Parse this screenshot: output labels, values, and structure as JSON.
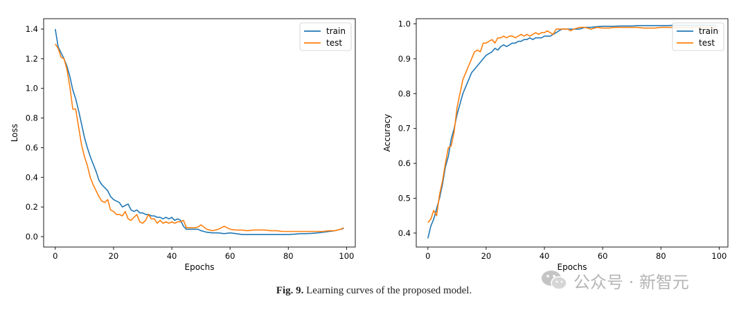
{
  "caption": {
    "label": "Fig. 9.",
    "text": "Learning curves of the proposed model."
  },
  "watermark": {
    "text": "公众号 · 新智元",
    "icon": "wechat-icon"
  },
  "colors": {
    "train": "#1f77b4",
    "test": "#ff7f0e",
    "axis": "#000000",
    "watermark": "#b5b5b5"
  },
  "chart_data": [
    {
      "type": "line",
      "title": "",
      "xlabel": "Epochs",
      "ylabel": "Loss",
      "xlim": [
        -4,
        103
      ],
      "ylim": [
        -0.07,
        1.47
      ],
      "xticks": [
        0,
        20,
        40,
        60,
        80,
        100
      ],
      "yticks": [
        0.0,
        0.2,
        0.4,
        0.6,
        0.8,
        1.0,
        1.2,
        1.4
      ],
      "ytick_labels": [
        "0.0",
        "0.2",
        "0.4",
        "0.6",
        "0.8",
        "1.0",
        "1.2",
        "1.4"
      ],
      "grid": false,
      "legend": "top-right",
      "series": [
        {
          "name": "train",
          "x": [
            0,
            1,
            2,
            3,
            4,
            5,
            6,
            7,
            8,
            9,
            10,
            11,
            12,
            13,
            14,
            15,
            16,
            17,
            18,
            19,
            20,
            21,
            22,
            23,
            24,
            25,
            26,
            27,
            28,
            29,
            30,
            31,
            32,
            33,
            34,
            35,
            36,
            37,
            38,
            39,
            40,
            41,
            42,
            43,
            44,
            45,
            46,
            47,
            48,
            49,
            50,
            52,
            54,
            56,
            58,
            60,
            62,
            64,
            66,
            68,
            70,
            72,
            74,
            76,
            78,
            80,
            82,
            84,
            86,
            88,
            90,
            92,
            94,
            96,
            98,
            99
          ],
          "y": [
            1.4,
            1.28,
            1.24,
            1.2,
            1.15,
            1.08,
            0.99,
            0.93,
            0.85,
            0.76,
            0.67,
            0.6,
            0.54,
            0.49,
            0.44,
            0.38,
            0.35,
            0.33,
            0.31,
            0.27,
            0.25,
            0.24,
            0.23,
            0.2,
            0.21,
            0.22,
            0.18,
            0.17,
            0.18,
            0.16,
            0.16,
            0.15,
            0.15,
            0.14,
            0.14,
            0.13,
            0.13,
            0.12,
            0.13,
            0.12,
            0.13,
            0.11,
            0.12,
            0.11,
            0.07,
            0.05,
            0.05,
            0.05,
            0.05,
            0.05,
            0.04,
            0.03,
            0.025,
            0.025,
            0.02,
            0.025,
            0.02,
            0.015,
            0.015,
            0.015,
            0.015,
            0.015,
            0.015,
            0.015,
            0.015,
            0.015,
            0.017,
            0.02,
            0.02,
            0.022,
            0.025,
            0.03,
            0.035,
            0.04,
            0.05,
            0.055
          ]
        },
        {
          "name": "test",
          "x": [
            0,
            1,
            2,
            3,
            4,
            5,
            6,
            7,
            8,
            9,
            10,
            11,
            12,
            13,
            14,
            15,
            16,
            17,
            18,
            19,
            20,
            21,
            22,
            23,
            24,
            25,
            26,
            27,
            28,
            29,
            30,
            31,
            32,
            33,
            34,
            35,
            36,
            37,
            38,
            39,
            40,
            41,
            42,
            43,
            44,
            45,
            46,
            47,
            48,
            49,
            50,
            52,
            54,
            56,
            58,
            60,
            62,
            64,
            66,
            68,
            70,
            72,
            74,
            76,
            78,
            80,
            82,
            84,
            86,
            88,
            90,
            92,
            94,
            96,
            98,
            99
          ],
          "y": [
            1.3,
            1.27,
            1.21,
            1.2,
            1.13,
            1.01,
            0.86,
            0.86,
            0.74,
            0.62,
            0.54,
            0.48,
            0.4,
            0.35,
            0.31,
            0.27,
            0.24,
            0.23,
            0.25,
            0.18,
            0.17,
            0.15,
            0.15,
            0.14,
            0.17,
            0.12,
            0.11,
            0.13,
            0.15,
            0.1,
            0.09,
            0.11,
            0.15,
            0.12,
            0.12,
            0.09,
            0.11,
            0.09,
            0.1,
            0.09,
            0.1,
            0.09,
            0.1,
            0.1,
            0.11,
            0.06,
            0.06,
            0.06,
            0.06,
            0.065,
            0.08,
            0.05,
            0.04,
            0.05,
            0.07,
            0.05,
            0.045,
            0.045,
            0.04,
            0.045,
            0.045,
            0.045,
            0.04,
            0.04,
            0.035,
            0.035,
            0.035,
            0.035,
            0.035,
            0.035,
            0.035,
            0.035,
            0.04,
            0.04,
            0.05,
            0.06
          ]
        }
      ]
    },
    {
      "type": "line",
      "title": "",
      "xlabel": "Epochs",
      "ylabel": "Accuracy",
      "xlim": [
        -4,
        103
      ],
      "ylim": [
        0.36,
        1.015
      ],
      "xticks": [
        0,
        20,
        40,
        60,
        80,
        100
      ],
      "yticks": [
        0.4,
        0.5,
        0.6,
        0.7,
        0.8,
        0.9,
        1.0
      ],
      "ytick_labels": [
        "0.4",
        "0.5",
        "0.6",
        "0.7",
        "0.8",
        "0.9",
        "1.0"
      ],
      "grid": false,
      "legend": "top-right",
      "series": [
        {
          "name": "train",
          "x": [
            0,
            1,
            2,
            3,
            4,
            5,
            6,
            7,
            8,
            9,
            10,
            11,
            12,
            13,
            14,
            15,
            16,
            17,
            18,
            19,
            20,
            21,
            22,
            23,
            24,
            25,
            26,
            27,
            28,
            29,
            30,
            31,
            32,
            33,
            34,
            35,
            36,
            37,
            38,
            39,
            40,
            41,
            42,
            43,
            44,
            45,
            46,
            47,
            48,
            49,
            50,
            52,
            54,
            56,
            58,
            60,
            62,
            64,
            66,
            68,
            70,
            72,
            74,
            76,
            78,
            80,
            82,
            84,
            86,
            88,
            90,
            92,
            94,
            96,
            98,
            99
          ],
          "y": [
            0.385,
            0.42,
            0.44,
            0.47,
            0.5,
            0.54,
            0.59,
            0.62,
            0.67,
            0.7,
            0.74,
            0.77,
            0.8,
            0.82,
            0.84,
            0.86,
            0.87,
            0.88,
            0.89,
            0.9,
            0.91,
            0.915,
            0.92,
            0.93,
            0.925,
            0.935,
            0.94,
            0.935,
            0.94,
            0.945,
            0.945,
            0.95,
            0.95,
            0.955,
            0.955,
            0.96,
            0.955,
            0.96,
            0.96,
            0.96,
            0.965,
            0.965,
            0.965,
            0.97,
            0.975,
            0.98,
            0.985,
            0.985,
            0.985,
            0.985,
            0.985,
            0.985,
            0.99,
            0.99,
            0.992,
            0.993,
            0.993,
            0.993,
            0.994,
            0.994,
            0.994,
            0.995,
            0.995,
            0.995,
            0.995,
            0.995,
            0.995,
            0.996,
            0.996,
            0.996,
            0.996,
            0.996,
            0.996,
            0.996,
            0.996,
            0.996
          ]
        },
        {
          "name": "test",
          "x": [
            0,
            1,
            2,
            3,
            4,
            5,
            6,
            7,
            8,
            9,
            10,
            11,
            12,
            13,
            14,
            15,
            16,
            17,
            18,
            19,
            20,
            21,
            22,
            23,
            24,
            25,
            26,
            27,
            28,
            29,
            30,
            31,
            32,
            33,
            34,
            35,
            36,
            37,
            38,
            39,
            40,
            41,
            42,
            43,
            44,
            45,
            46,
            47,
            48,
            49,
            50,
            52,
            54,
            56,
            58,
            60,
            62,
            64,
            66,
            68,
            70,
            72,
            74,
            76,
            78,
            80,
            82,
            84,
            86,
            88,
            90,
            92,
            94,
            96,
            98,
            99
          ],
          "y": [
            0.43,
            0.44,
            0.465,
            0.45,
            0.51,
            0.55,
            0.6,
            0.645,
            0.65,
            0.69,
            0.76,
            0.8,
            0.84,
            0.86,
            0.88,
            0.9,
            0.92,
            0.925,
            0.92,
            0.945,
            0.945,
            0.95,
            0.955,
            0.945,
            0.96,
            0.96,
            0.965,
            0.96,
            0.965,
            0.965,
            0.96,
            0.965,
            0.97,
            0.965,
            0.97,
            0.965,
            0.97,
            0.975,
            0.97,
            0.975,
            0.975,
            0.98,
            0.975,
            0.97,
            0.985,
            0.985,
            0.985,
            0.985,
            0.985,
            0.98,
            0.985,
            0.99,
            0.99,
            0.985,
            0.99,
            0.988,
            0.988,
            0.99,
            0.99,
            0.99,
            0.99,
            0.99,
            0.988,
            0.988,
            0.988,
            0.99,
            0.99,
            0.99,
            0.99,
            0.99,
            0.99,
            0.99,
            0.99,
            0.99,
            0.99,
            0.99
          ]
        }
      ]
    }
  ]
}
